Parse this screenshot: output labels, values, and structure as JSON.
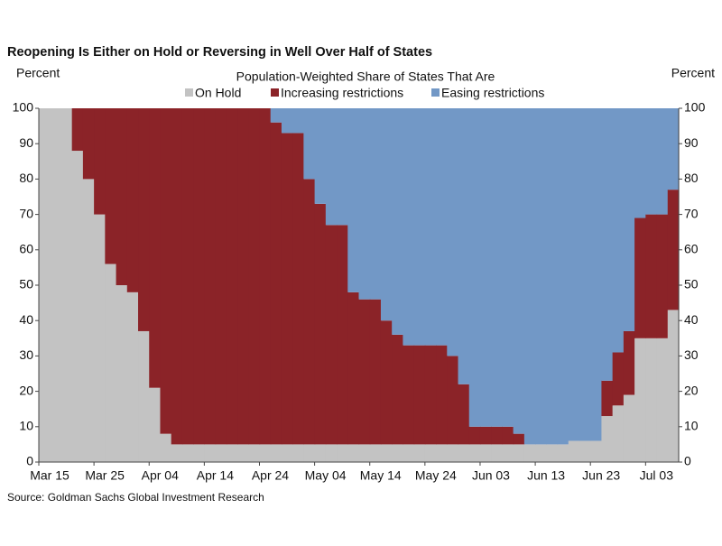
{
  "chart_data": {
    "type": "stacked_area",
    "title": "Reopening Is Either on Hold or Reversing in Well Over Half of States",
    "subtitle": "Population-Weighted  Share  of States That Are",
    "y_label": "Percent",
    "y2_label": "Percent",
    "source": "Source: Goldman Sachs Global Investment Research",
    "categories": [
      "Mar 15",
      null,
      null,
      null,
      null,
      "Mar 25",
      null,
      null,
      null,
      null,
      "Apr 04",
      null,
      null,
      null,
      null,
      "Apr 14",
      null,
      null,
      null,
      null,
      "Apr 24",
      null,
      null,
      null,
      null,
      "May 04",
      null,
      null,
      null,
      null,
      "May 14",
      null,
      null,
      null,
      null,
      "May 24",
      null,
      null,
      null,
      null,
      "Jun 03",
      null,
      null,
      null,
      null,
      "Jun 13",
      null,
      null,
      null,
      null,
      "Jun 23",
      null,
      null,
      null,
      null,
      "Jul 03",
      null,
      null
    ],
    "series": [
      {
        "name": "On Hold",
        "color": "#c3c3c3",
        "values": [
          100,
          100,
          100,
          88,
          80,
          70,
          56,
          50,
          48,
          37,
          21,
          8,
          5,
          5,
          5,
          5,
          5,
          5,
          5,
          5,
          5,
          5,
          5,
          5,
          5,
          5,
          5,
          5,
          5,
          5,
          5,
          5,
          5,
          5,
          5,
          5,
          5,
          5,
          5,
          5,
          5,
          5,
          5,
          5,
          5,
          5,
          5,
          5,
          6,
          6,
          6,
          13,
          16,
          19,
          35,
          35,
          35,
          43
        ]
      },
      {
        "name": "Increasing restrictions",
        "color": "#8b2328",
        "values": [
          0,
          0,
          0,
          12,
          20,
          30,
          44,
          50,
          52,
          63,
          79,
          92,
          95,
          95,
          95,
          95,
          95,
          95,
          95,
          95,
          95,
          91,
          88,
          88,
          75,
          68,
          62,
          62,
          43,
          41,
          41,
          35,
          31,
          28,
          28,
          28,
          28,
          25,
          17,
          5,
          5,
          5,
          5,
          3,
          0,
          0,
          0,
          0,
          0,
          0,
          0,
          10,
          15,
          18,
          34,
          35,
          35,
          34
        ]
      },
      {
        "name": "Easing restrictions",
        "color": "#7298c6",
        "values": [
          0,
          0,
          0,
          0,
          0,
          0,
          0,
          0,
          0,
          0,
          0,
          0,
          0,
          0,
          0,
          0,
          0,
          0,
          0,
          0,
          0,
          4,
          7,
          7,
          20,
          27,
          33,
          33,
          52,
          54,
          54,
          60,
          64,
          67,
          67,
          67,
          67,
          70,
          78,
          90,
          90,
          90,
          90,
          92,
          95,
          95,
          95,
          95,
          94,
          94,
          94,
          77,
          69,
          63,
          31,
          30,
          30,
          23
        ]
      }
    ],
    "ylim": [
      0,
      100
    ],
    "yticks": [
      0,
      10,
      20,
      30,
      40,
      50,
      60,
      70,
      80,
      90,
      100
    ],
    "y2lim": [
      0,
      100
    ],
    "y2ticks": [
      0,
      10,
      20,
      30,
      40,
      50,
      60,
      70,
      80,
      90,
      100
    ],
    "legend": "top"
  }
}
